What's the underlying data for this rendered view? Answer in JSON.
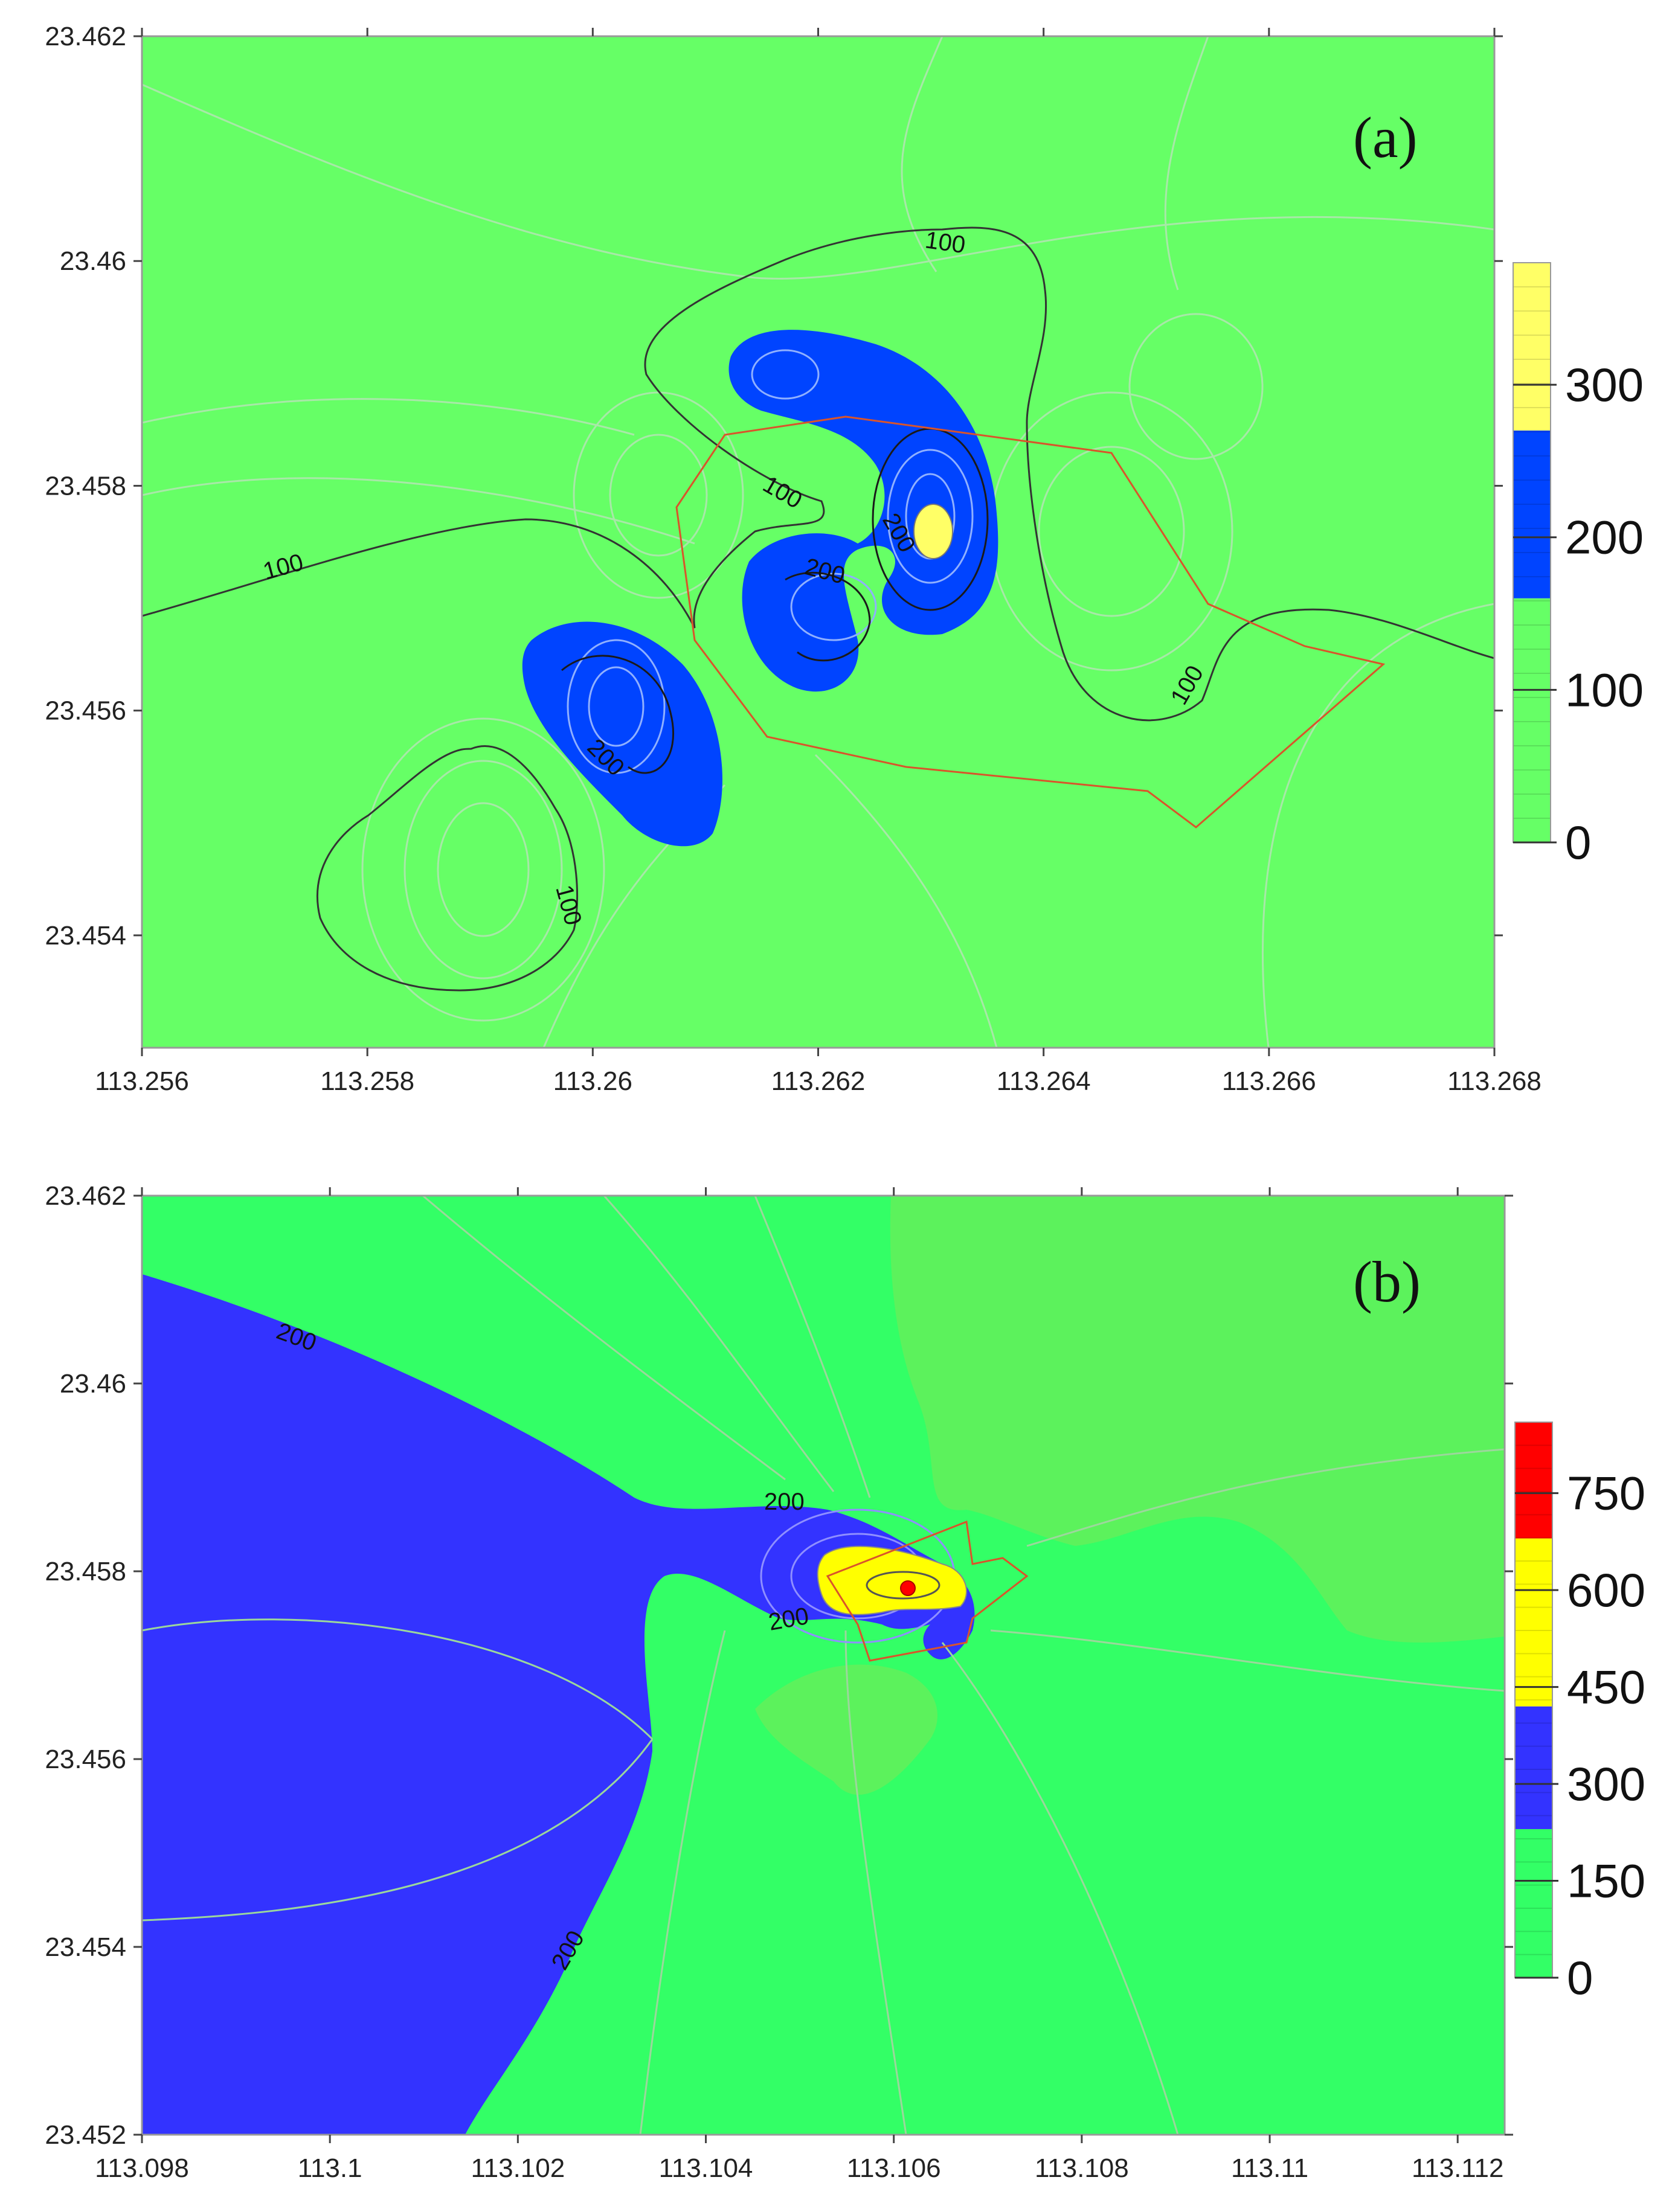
{
  "chart_data": [
    {
      "type": "contour",
      "panel_label": "(a)",
      "x_ticks": [
        "113.256",
        "113.258",
        "113.26",
        "113.262",
        "113.264",
        "113.266",
        "113.268"
      ],
      "y_ticks": [
        "23.462",
        "23.46",
        "23.458",
        "23.456",
        "23.454"
      ],
      "xlim": [
        113.256,
        113.268
      ],
      "ylim": [
        23.453,
        23.462
      ],
      "contour_labels": [
        "100",
        "100",
        "100",
        "100",
        "100",
        "200",
        "200",
        "200"
      ],
      "colorbar": {
        "labels": [
          "300",
          "200",
          "100",
          "0"
        ],
        "bands": [
          {
            "from": 0,
            "to": 160,
            "color": "#66ff66"
          },
          {
            "from": 160,
            "to": 270,
            "color": "#0044ff"
          },
          {
            "from": 270,
            "to": 380,
            "color": "#ffff66"
          }
        ]
      },
      "colors": {
        "background": "#66ff66",
        "high": "#0044ff",
        "peak": "#ffff66",
        "outline": "#d9552b"
      }
    },
    {
      "type": "contour",
      "panel_label": "(b)",
      "x_ticks": [
        "113.098",
        "113.1",
        "113.102",
        "113.104",
        "113.106",
        "113.108",
        "113.11",
        "113.112"
      ],
      "y_ticks": [
        "23.462",
        "23.46",
        "23.458",
        "23.456",
        "23.454",
        "23.452"
      ],
      "xlim": [
        113.098,
        113.1125
      ],
      "ylim": [
        23.452,
        23.462
      ],
      "contour_labels": [
        "200",
        "200",
        "200",
        "200"
      ],
      "colorbar": {
        "labels": [
          "750",
          "600",
          "450",
          "300",
          "150",
          "0"
        ],
        "bands": [
          {
            "from": 0,
            "to": 230,
            "color": "#33ff66"
          },
          {
            "from": 230,
            "to": 420,
            "color": "#3333ff"
          },
          {
            "from": 420,
            "to": 680,
            "color": "#ffff00"
          },
          {
            "from": 680,
            "to": 860,
            "color": "#ff0000"
          }
        ]
      },
      "colors": {
        "background": "#33ff66",
        "high": "#3333ff",
        "peak": "#ffff00",
        "max": "#ff0000",
        "outline": "#d9552b"
      }
    }
  ]
}
